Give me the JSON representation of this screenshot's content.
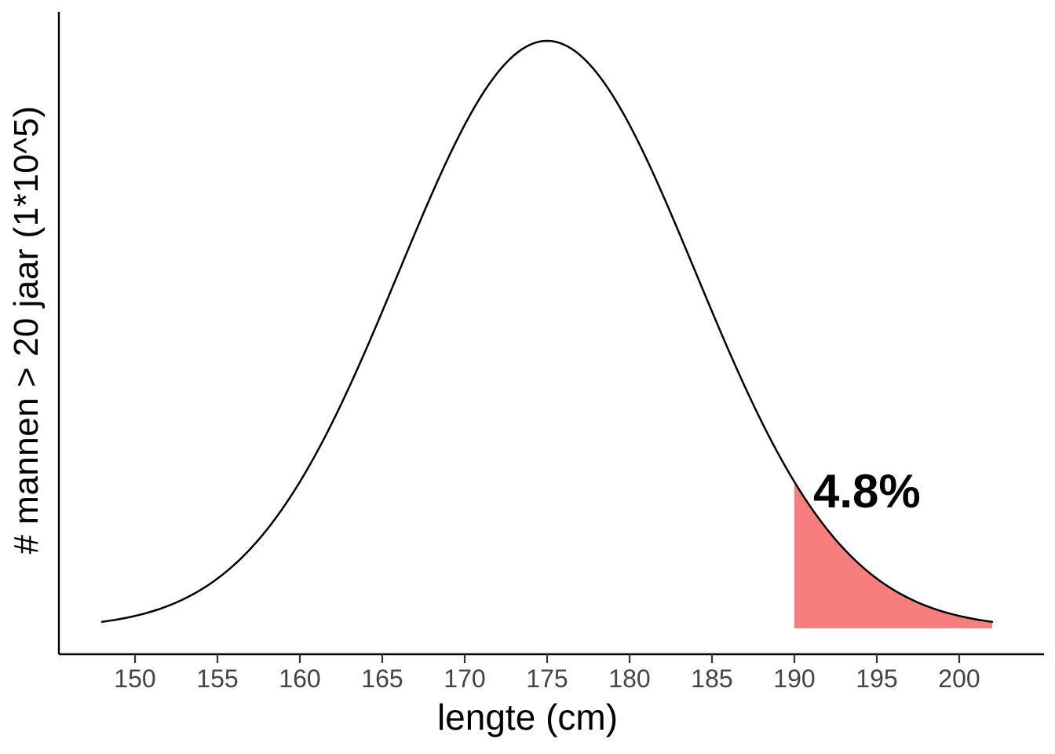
{
  "chart_data": {
    "type": "area",
    "title": "",
    "xlabel": "lengte (cm)",
    "ylabel": "# mannen > 20 jaar (1*10^5)",
    "x_range": [
      148,
      202
    ],
    "x_ticks": [
      150,
      155,
      160,
      165,
      170,
      175,
      180,
      185,
      190,
      195,
      200
    ],
    "distribution": {
      "shape": "normal",
      "mean": 175,
      "sd": 9
    },
    "curve_color": "#000000",
    "curve_width": 2.5,
    "axis_color": "#000000",
    "tick_label_color": "#444444",
    "background": "#FFFFFF",
    "grid": false,
    "legend": false,
    "shaded_region": {
      "from": 190,
      "to": 202,
      "fill": "#F87E7E",
      "label": "4.8%"
    }
  }
}
